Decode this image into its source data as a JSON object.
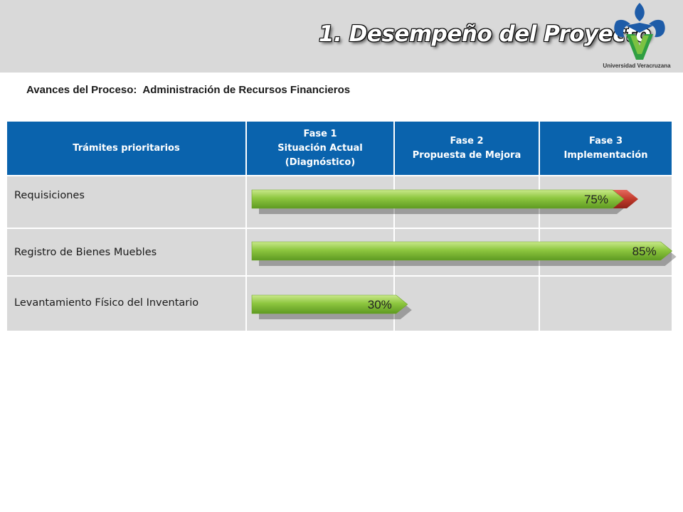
{
  "header": {
    "title": "1. Desempeño del Proyecto",
    "logo_caption": "Universidad Veracruzana"
  },
  "subtitle": {
    "label": "Avances del Proceso:",
    "value": "Administración de Recursos Financieros"
  },
  "table": {
    "columns": [
      {
        "lines": [
          "Trámites prioritarios"
        ]
      },
      {
        "lines": [
          "Fase 1",
          "Situación Actual",
          "(Diagnóstico)"
        ]
      },
      {
        "lines": [
          "Fase 2",
          "Propuesta de Mejora"
        ]
      },
      {
        "lines": [
          "Fase 3",
          "Implementación"
        ]
      }
    ],
    "rows": [
      {
        "label": "Requisiciones",
        "progress": 75,
        "progress_label": "75%",
        "flag": "red"
      },
      {
        "label": "Registro de Bienes Muebles",
        "progress": 85,
        "progress_label": "85%",
        "flag": "none"
      },
      {
        "label": "Levantamiento Físico del Inventario",
        "progress": 30,
        "progress_label": "30%",
        "flag": "none"
      }
    ]
  },
  "colors": {
    "header_blue": "#0a63ad",
    "cell_gray": "#d9d9d9",
    "bar_green": "#8dc63f",
    "flag_red": "#c0392b"
  }
}
